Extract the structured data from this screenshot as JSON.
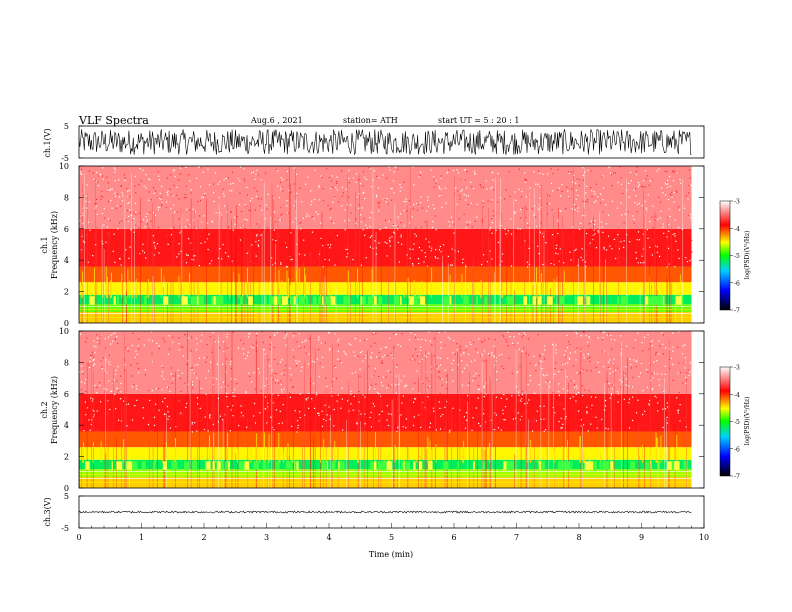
{
  "header": {
    "title": "VLF  Spectra",
    "date": "Aug.6   , 2021",
    "station": "station= ATH",
    "start": "start  UT  =    5  : 20 : 1"
  },
  "colors": {
    "scale": [
      "#000000",
      "#0000ff",
      "#00d0ff",
      "#00ff00",
      "#ffff00",
      "#ff0000",
      "#ffffff"
    ],
    "trace": "#000000"
  },
  "chart_data": [
    {
      "type": "line",
      "name": "ch1-waveform",
      "ylabel": "ch.1(V)",
      "ylim": [
        -5,
        5
      ],
      "yticks": [
        "5",
        "-5"
      ],
      "xlim": [
        0,
        10
      ],
      "amplitude": 4
    },
    {
      "type": "heatmap",
      "name": "ch1-spectrogram",
      "ylabel_lines": [
        "ch.1",
        "Frequency  (kHz)"
      ],
      "ylim": [
        0,
        10
      ],
      "yticks": [
        0,
        2,
        4,
        6,
        8,
        10
      ],
      "xlim": [
        0,
        10
      ],
      "data_end_min": 9.8,
      "colorbar": {
        "label": "log(PSD)(V²/Hz)",
        "range": [
          -7,
          -3
        ],
        "ticks": [
          "-3",
          "-4",
          "-5",
          "-6",
          "-7"
        ]
      },
      "bands": [
        {
          "f": [
            0,
            0.7
          ],
          "level": -4.4
        },
        {
          "f": [
            0.7,
            1.2
          ],
          "level": -4.8
        },
        {
          "f": [
            1.2,
            1.8
          ],
          "level": -5.2
        },
        {
          "f": [
            1.8,
            2.6
          ],
          "level": -4.5
        },
        {
          "f": [
            2.6,
            3.6
          ],
          "level": -4.1
        },
        {
          "f": [
            3.6,
            6
          ],
          "level": -3.8
        },
        {
          "f": [
            6,
            10
          ],
          "level": -3.4
        }
      ]
    },
    {
      "type": "heatmap",
      "name": "ch2-spectrogram",
      "ylabel_lines": [
        "ch.2",
        "Frequency  (kHz)"
      ],
      "ylim": [
        0,
        10
      ],
      "yticks": [
        0,
        2,
        4,
        6,
        8,
        10
      ],
      "xlim": [
        0,
        10
      ],
      "data_end_min": 9.8,
      "colorbar": {
        "label": "log(PSD)(V²/Hz)",
        "range": [
          -7,
          -3
        ],
        "ticks": [
          "-3",
          "-4",
          "-5",
          "-6",
          "-7"
        ]
      },
      "bands": [
        {
          "f": [
            0,
            0.7
          ],
          "level": -4.4
        },
        {
          "f": [
            0.7,
            1.2
          ],
          "level": -4.7
        },
        {
          "f": [
            1.2,
            1.8
          ],
          "level": -5.2
        },
        {
          "f": [
            1.8,
            2.6
          ],
          "level": -4.5
        },
        {
          "f": [
            2.6,
            3.6
          ],
          "level": -4.1
        },
        {
          "f": [
            3.6,
            6
          ],
          "level": -3.8
        },
        {
          "f": [
            6,
            10
          ],
          "level": -3.4
        }
      ]
    },
    {
      "type": "line",
      "name": "ch3-waveform",
      "ylabel": "ch.3(V)",
      "ylim": [
        -5,
        5
      ],
      "yticks": [
        "5",
        "-5"
      ],
      "xlim": [
        0,
        10
      ],
      "xlabel": "Time  (min)",
      "xticks": [
        0,
        1,
        2,
        3,
        4,
        5,
        6,
        7,
        8,
        9,
        10
      ],
      "amplitude": 0.3
    }
  ]
}
